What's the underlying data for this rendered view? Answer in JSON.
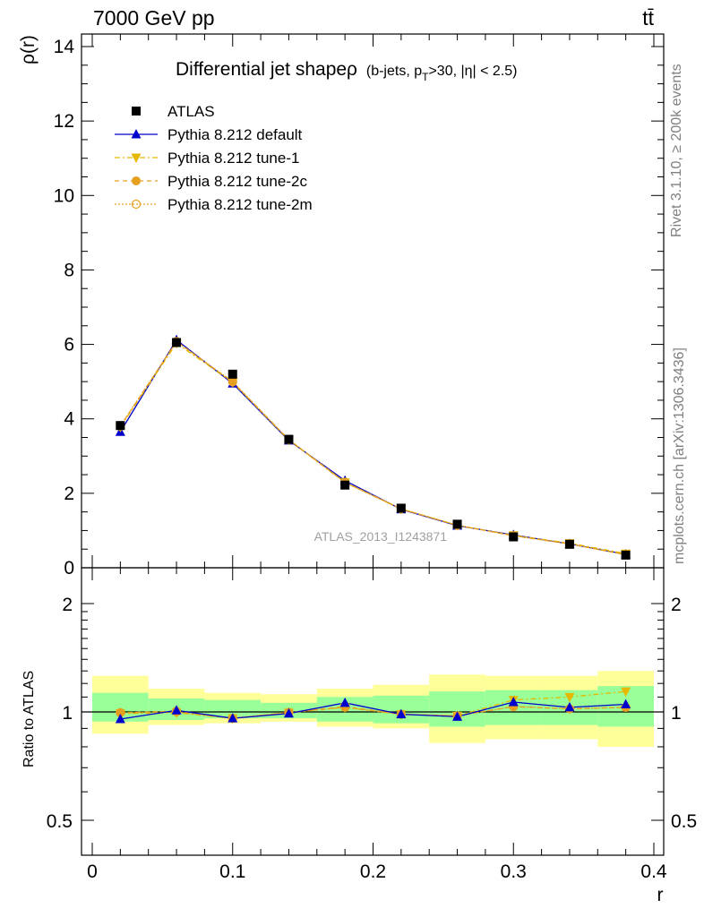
{
  "header": {
    "energy": "7000 GeV pp",
    "process": "tt̄"
  },
  "side": {
    "rivet": "Rivet 3.1.10, ≥ 200k events",
    "mcplots": "mcplots.cern.ch [arXiv:1306.3436]"
  },
  "colors": {
    "atlas": "#000000",
    "default": "#0000cc",
    "tune1": "#e6b800",
    "tune2c": "#e6a020",
    "tune2m": "#e6a020",
    "band_inner": "#99ff99",
    "band_outer": "#ffff99"
  },
  "chart_data": [
    {
      "type": "scatter",
      "title": "Differential jet shapeρ",
      "title_sub": "(b-jets, p",
      "title_subT": "T",
      "title_rest": ">30, |η| < 2.5)",
      "ylabel": "ρ(r)",
      "watermark": "ATLAS_2013_I1243871",
      "xlim": [
        0,
        0.4
      ],
      "ylim": [
        0,
        14.5
      ],
      "x": [
        0.02,
        0.06,
        0.1,
        0.14,
        0.18,
        0.22,
        0.26,
        0.3,
        0.34,
        0.38
      ],
      "x_ticks": [
        "0",
        "0.1",
        "0.2",
        "0.3",
        "0.4"
      ],
      "y_ticks": [
        "0",
        "2",
        "4",
        "6",
        "8",
        "10",
        "12",
        "14"
      ],
      "legend_position": "top-left",
      "series": [
        {
          "name": "ATLAS",
          "style": "data",
          "values": [
            3.82,
            6.05,
            5.2,
            3.45,
            2.22,
            1.6,
            1.17,
            0.83,
            0.63,
            0.34
          ]
        },
        {
          "name": "Pythia 8.212 default",
          "style": "default",
          "values": [
            3.65,
            6.12,
            4.95,
            3.42,
            2.34,
            1.57,
            1.13,
            0.88,
            0.64,
            0.36
          ]
        },
        {
          "name": "Pythia 8.212 tune-1",
          "style": "tune1",
          "values": [
            3.78,
            6.03,
            4.98,
            3.43,
            2.29,
            1.58,
            1.14,
            0.87,
            0.66,
            0.38
          ]
        },
        {
          "name": "Pythia 8.212 tune-2c",
          "style": "tune2c",
          "values": [
            3.8,
            6.08,
            4.99,
            3.44,
            2.3,
            1.58,
            1.14,
            0.86,
            0.64,
            0.35
          ]
        },
        {
          "name": "Pythia 8.212 tune-2m",
          "style": "tune2m",
          "values": [
            3.81,
            6.07,
            5.0,
            3.44,
            2.29,
            1.58,
            1.14,
            0.86,
            0.64,
            0.35
          ]
        }
      ]
    },
    {
      "type": "scatter",
      "ylabel": "Ratio to ATLAS",
      "xlabel": "r",
      "xlim": [
        0,
        0.4
      ],
      "ylim": [
        0.4,
        2.3
      ],
      "y_scale": "log",
      "x": [
        0.02,
        0.06,
        0.1,
        0.14,
        0.18,
        0.22,
        0.26,
        0.3,
        0.34,
        0.38
      ],
      "y_ticks_left": [
        "0.5",
        "1",
        "2"
      ],
      "y_ticks_right": [
        "0.5",
        "1",
        "2"
      ],
      "y_tick_values": [
        0.5,
        1,
        2
      ],
      "bands": {
        "bin_edges": [
          0.0,
          0.04,
          0.08,
          0.12,
          0.16,
          0.2,
          0.24,
          0.28,
          0.32,
          0.36,
          0.4
        ],
        "inner_lo": [
          0.94,
          0.95,
          0.96,
          0.96,
          0.94,
          0.93,
          0.91,
          0.92,
          0.92,
          0.91
        ],
        "inner_hi": [
          1.13,
          1.09,
          1.08,
          1.06,
          1.1,
          1.11,
          1.14,
          1.15,
          1.15,
          1.18
        ],
        "outer_lo": [
          0.87,
          0.92,
          0.93,
          0.94,
          0.91,
          0.9,
          0.82,
          0.84,
          0.84,
          0.8
        ],
        "outer_hi": [
          1.26,
          1.16,
          1.13,
          1.12,
          1.16,
          1.19,
          1.27,
          1.26,
          1.26,
          1.3
        ]
      },
      "series": [
        {
          "name": "Pythia 8.212 default",
          "style": "default",
          "values": [
            0.955,
            1.01,
            0.96,
            0.99,
            1.06,
            0.985,
            0.97,
            1.065,
            1.03,
            1.05
          ]
        },
        {
          "name": "Pythia 8.212 tune-1",
          "style": "tune1",
          "values": [
            0.99,
            0.995,
            0.96,
            0.995,
            1.03,
            0.985,
            0.975,
            1.08,
            1.1,
            1.14
          ]
        },
        {
          "name": "Pythia 8.212 tune-2c",
          "style": "tune2c",
          "values": [
            0.995,
            1.005,
            0.96,
            0.995,
            1.035,
            0.985,
            0.975,
            1.035,
            1.02,
            1.03
          ]
        },
        {
          "name": "Pythia 8.212 tune-2m",
          "style": "tune2m",
          "values": [
            0.995,
            1.0,
            0.96,
            0.997,
            1.03,
            0.985,
            0.975,
            1.035,
            1.02,
            1.03
          ]
        }
      ]
    }
  ]
}
